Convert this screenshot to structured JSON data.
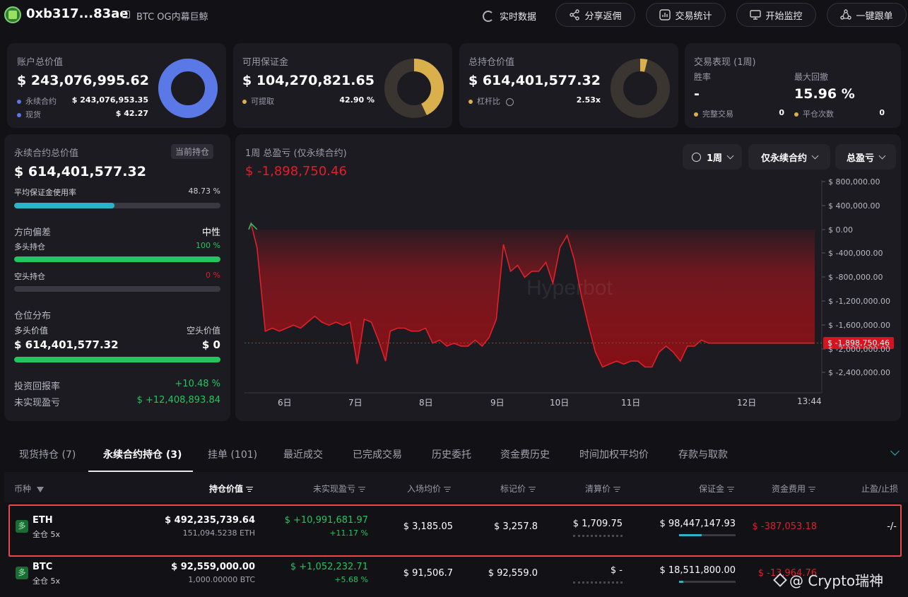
{
  "header": {
    "address": "0xb317...83ae",
    "wallet_tag": "BTC OG内幕巨鲸",
    "actions": [
      {
        "label": "实时数据",
        "icon": "refresh-icon"
      },
      {
        "label": "分享返佣",
        "icon": "share-icon"
      },
      {
        "label": "交易统计",
        "icon": "stats-icon"
      },
      {
        "label": "开始监控",
        "icon": "monitor-icon"
      },
      {
        "label": "一键跟单",
        "icon": "follow-icon"
      }
    ]
  },
  "stats": {
    "account_value": {
      "label": "账户总价值",
      "value": "$ 243,076,995.62",
      "rows": [
        {
          "label": "永续合约",
          "value": "$ 243,076,953.35",
          "color": "#5a78e6"
        },
        {
          "label": "现货",
          "value": "$ 42.27",
          "color": "#5a78e6"
        }
      ],
      "perp_fraction": 0.9999
    },
    "margin": {
      "label": "可用保证金",
      "value": "$ 104,270,821.65",
      "row_label": "可提取",
      "row_value": "42.90 %",
      "fraction": 0.429
    },
    "position_value": {
      "label": "总持仓价值",
      "value": "$ 614,401,577.32",
      "row_label": "杠杆比",
      "row_value": "2.53x",
      "fraction": 0.04
    },
    "performance": {
      "label": "交易表现 (1周)",
      "win_rate_label": "胜率",
      "win_rate": "-",
      "drawdown_label": "最大回撤",
      "drawdown": "15.96 %",
      "completed_label": "完整交易",
      "completed": "0",
      "close_label": "平仓次数",
      "close": "0"
    }
  },
  "left_panel": {
    "title": "永续合约总价值",
    "badge": "当前持仓",
    "value": "$ 614,401,577.32",
    "margin_usage_label": "平均保证金使用率",
    "margin_usage": "48.73 %",
    "margin_usage_fraction": 0.4873,
    "bias_label": "方向偏差",
    "bias_value": "中性",
    "long_label": "多头持仓",
    "long_pct": "100 %",
    "long_fraction": 1.0,
    "short_label": "空头持仓",
    "short_pct": "0 %",
    "short_fraction": 0.0,
    "dist_label": "仓位分布",
    "long_value_label": "多头价值",
    "short_value_label": "空头价值",
    "long_value": "$ 614,401,577.32",
    "short_value": "$ 0",
    "roi_label": "投资回报率",
    "roi": "+10.48 %",
    "upnl_label": "未实现盈亏",
    "upnl": "$ +12,408,893.84"
  },
  "pnl_chart": {
    "title": "1周 总盈亏 (仅永续合约)",
    "value": "$ -1,898,750.46",
    "filters": [
      "1周",
      "仅永续合约",
      "总盈亏"
    ],
    "watermark": "Hyperbot"
  },
  "chart_data": {
    "type": "area",
    "y_ticks": [
      "$ 800,000.00",
      "$ 400,000.00",
      "$ 0.00",
      "$ -400,000.00",
      "$ -800,000.00",
      "$ -1,200,000.00",
      "$ -1,600,000.00",
      "$ -2,000,000.00",
      "$ -2,400,000.00"
    ],
    "x_ticks": [
      "6日",
      "7日",
      "8日",
      "9日",
      "10日",
      "11日",
      "12日",
      "13:44"
    ],
    "ylim": [
      -2600000,
      800000
    ],
    "current_label": "$ -1,898,750.46",
    "current_value": -1898750.46,
    "x": [
      0,
      0.1,
      0.35,
      0.7,
      1.0,
      1.3,
      1.6,
      1.9,
      2.2,
      2.5,
      2.8,
      3.1,
      3.4,
      3.7,
      4.0,
      4.3,
      4.6,
      4.9,
      5.2,
      5.5,
      5.8,
      6.0,
      6.3,
      6.6,
      6.9,
      7.2,
      7.5,
      7.8,
      8.1,
      8.4,
      8.7,
      9.0,
      9.3,
      9.6,
      9.9,
      10.2,
      10.5,
      10.8,
      11.1,
      11.4,
      11.7,
      12.0,
      12.3,
      12.6,
      12.9,
      13.2,
      13.5,
      13.8,
      14.1,
      14.4,
      14.7,
      15.0,
      15.3,
      15.6,
      15.9,
      16.2,
      16.5,
      16.8,
      17.1,
      17.4,
      17.7,
      18.0,
      18.3,
      18.6,
      18.9,
      19.2,
      19.5,
      19.8,
      20.1,
      20.4,
      20.7,
      21.0,
      21.3,
      21.6,
      21.9,
      22.2,
      22.5,
      22.8,
      23.1,
      23.4,
      23.7,
      24.0
    ],
    "series": [
      {
        "values": [
          0,
          100000,
          -300000,
          -1700000,
          -1650000,
          -1700000,
          -1650000,
          -1600000,
          -1650000,
          -1550000,
          -1450000,
          -1550000,
          -1600000,
          -1550000,
          -1600000,
          -1550000,
          -2250000,
          -1500000,
          -1550000,
          -1850000,
          -2200000,
          -1700000,
          -1650000,
          -1650000,
          -1700000,
          -1700000,
          -1650000,
          -1900000,
          -1850000,
          -1950000,
          -1900000,
          -1950000,
          -1950000,
          -1850000,
          -1950000,
          -1800000,
          -1500000,
          -250000,
          -700000,
          -600000,
          -800000,
          -700000,
          -700000,
          -550000,
          -900000,
          -300000,
          -100000,
          -500000,
          -1100000,
          -1600000,
          -2050000,
          -2300000,
          -2250000,
          -2200000,
          -2250000,
          -2200000,
          -2200000,
          -2300000,
          -2300000,
          -2050000,
          -1950000,
          -2050000,
          -2200000,
          -1950000,
          -1950000,
          -1850000,
          -1900000,
          -1900000,
          -1900000,
          -1900000,
          -1900000,
          -1900000,
          -1900000,
          -1900000,
          -1900000,
          -1900000,
          -1900000,
          -1900000,
          -1900000,
          -1900000,
          -1900000,
          -1900000
        ]
      }
    ]
  },
  "tabs": [
    "现货持仓 (7)",
    "永续合约持仓 (3)",
    "挂单 (101)",
    "最近成交",
    "已完成交易",
    "历史委托",
    "资金费历史",
    "时间加权平均价",
    "存款与取款"
  ],
  "table": {
    "headers": [
      "币种",
      "持仓价值",
      "未实现盈亏",
      "入场均价",
      "标记价",
      "清算价",
      "保证金",
      "资金费用",
      "止盈/止损"
    ],
    "rows": [
      {
        "badge": "多",
        "coin": "ETH",
        "mode": "全仓 5x",
        "value": "$ 492,235,739.64",
        "size": "151,094.5238 ETH",
        "upnl": "$ +10,991,681.97",
        "upnl_pct": "+11.17 %",
        "entry": "$ 3,185.05",
        "mark": "$ 3,257.8",
        "liq": "$ 1,709.75",
        "margin": "$ 98,447,147.93",
        "margin_fraction": 0.4,
        "funding": "$ -387,053.18",
        "tpsl": "-/-"
      },
      {
        "badge": "多",
        "coin": "BTC",
        "mode": "全仓 5x",
        "value": "$ 92,559,000.00",
        "size": "1,000.00000 BTC",
        "upnl": "$ +1,052,232.71",
        "upnl_pct": "+5.68 %",
        "entry": "$ 91,506.7",
        "mark": "$ 92,559.0",
        "liq": "$ -",
        "margin": "$ 18,511,800.00",
        "margin_fraction": 0.08,
        "funding": "$ -13,964.76",
        "tpsl": ""
      }
    ]
  },
  "watermark_text": "@ Crypto瑞神"
}
